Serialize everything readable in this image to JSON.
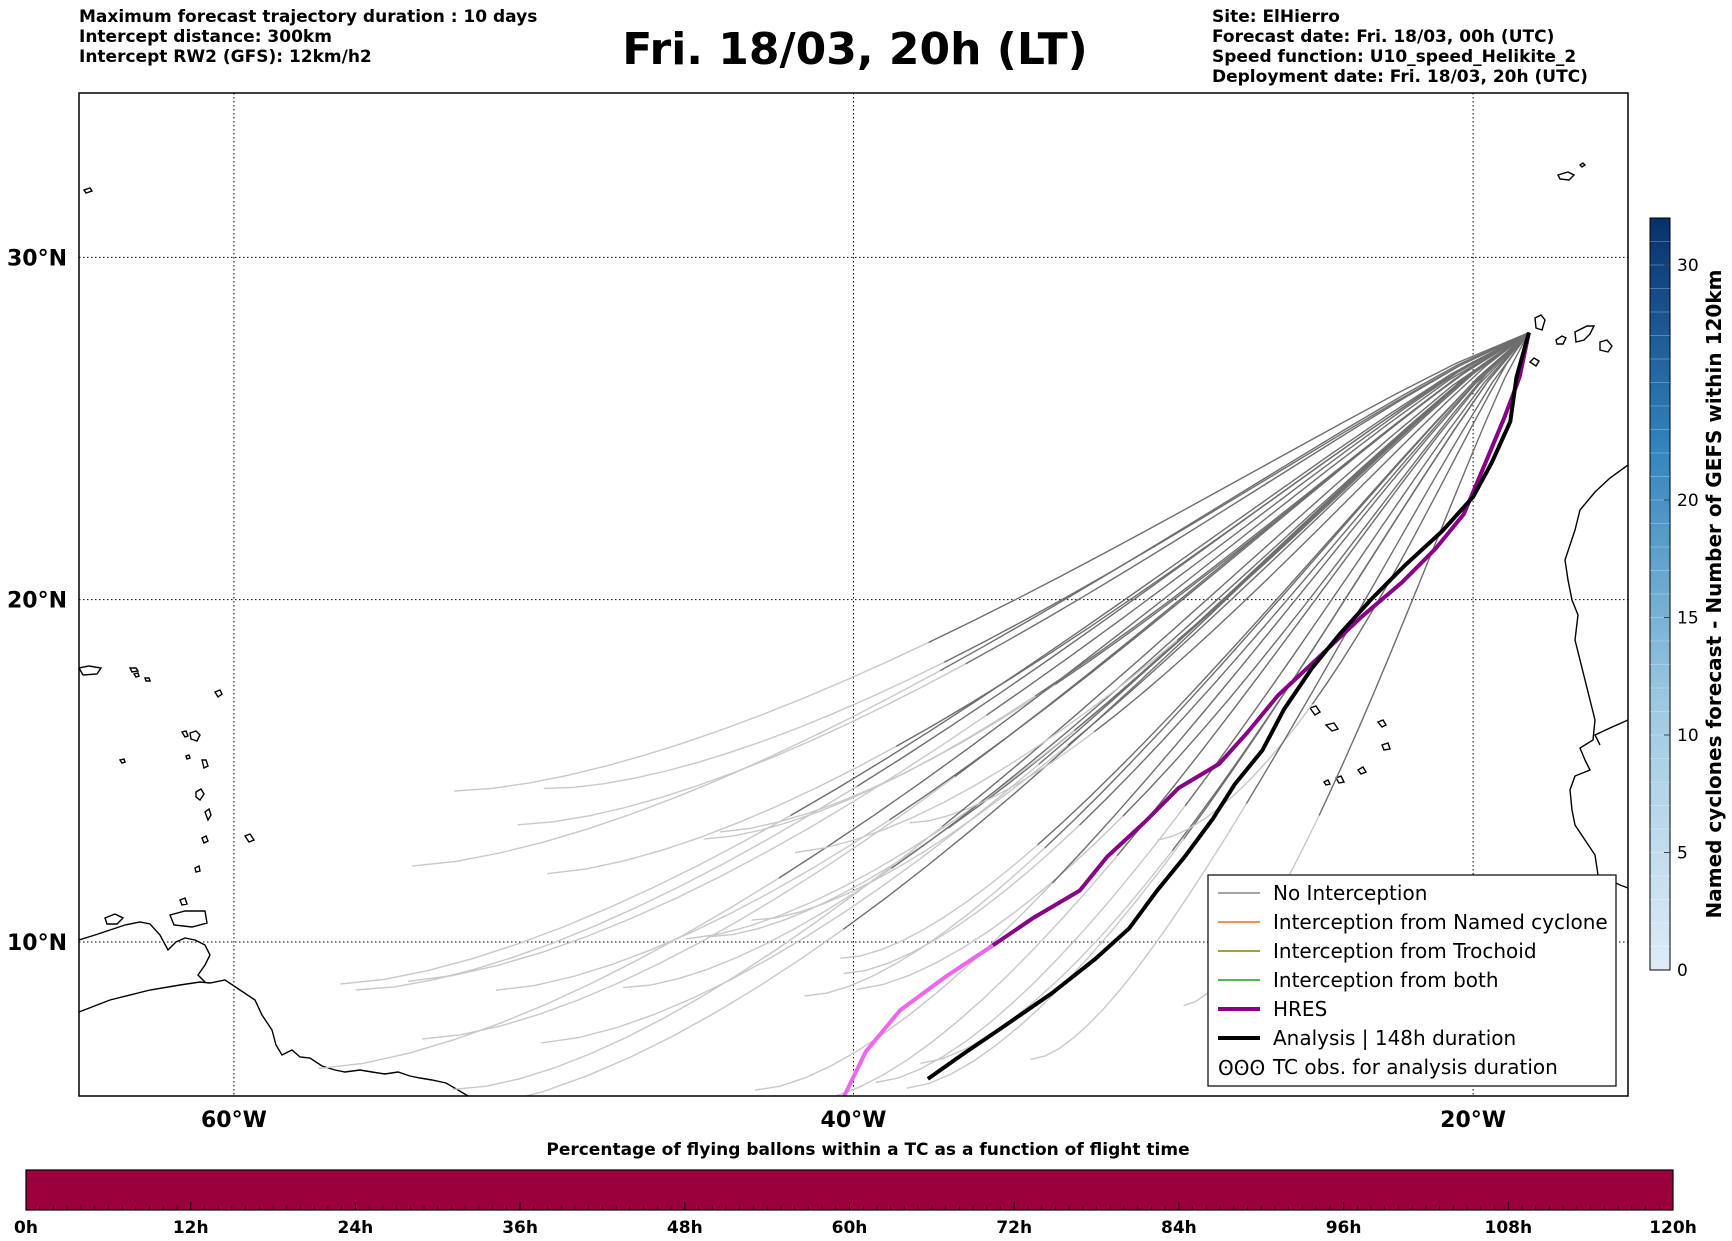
{
  "header": {
    "left": [
      "Maximum forecast trajectory duration : 10 days",
      "Intercept distance: 300km",
      "Intercept RW2 (GFS):  12km/h2"
    ],
    "title": "Fri. 18/03, 20h (LT)",
    "right": [
      "Site: ElHierro",
      "Forecast date: Fri. 18/03, 00h (UTC)",
      "Speed function: U10_speed_Helikite_2",
      "Deployment date: Fri. 18/03, 20h (UTC)"
    ]
  },
  "map": {
    "lon_range": [
      -65,
      -15
    ],
    "lat_range": [
      5.5,
      34.8
    ],
    "lat_ticks": [
      {
        "value": 30,
        "label": "30°N"
      },
      {
        "value": 20,
        "label": "20°N"
      },
      {
        "value": 10,
        "label": "10°N"
      }
    ],
    "lon_ticks": [
      {
        "value": -60,
        "label": "60°W"
      },
      {
        "value": -40,
        "label": "40°W"
      },
      {
        "value": -20,
        "label": "20°W"
      }
    ],
    "launch_point": {
      "lon": -18.2,
      "lat": 27.8
    },
    "colors": {
      "no_interception_recent": "#6e6e6e",
      "no_interception_late": "#c8c8c8",
      "named_cyclone": "#ff6a1a",
      "trochoid": "#808000",
      "both": "#1aa01a",
      "hres": "#880088",
      "hres_late": "#ee66ee",
      "analysis": "#000000"
    },
    "hres_track": [
      [
        -18.2,
        27.8
      ],
      [
        -18.5,
        26.5
      ],
      [
        -19,
        25.3
      ],
      [
        -19.6,
        24
      ],
      [
        -20.3,
        22.5
      ],
      [
        -21.2,
        21.5
      ],
      [
        -22.3,
        20.5
      ],
      [
        -23.6,
        19.5
      ],
      [
        -25,
        18.3
      ],
      [
        -26.3,
        17.2
      ],
      [
        -27.3,
        16.1
      ],
      [
        -28.2,
        15.2
      ],
      [
        -29.5,
        14.5
      ],
      [
        -30.6,
        13.5
      ],
      [
        -31.8,
        12.5
      ],
      [
        -32.7,
        11.5
      ],
      [
        -34.2,
        10.7
      ],
      [
        -35.5,
        9.9
      ],
      [
        -37,
        9
      ],
      [
        -38.5,
        8
      ],
      [
        -39.6,
        6.8
      ],
      [
        -40.3,
        5.5
      ]
    ],
    "analysis_track": [
      [
        -18.2,
        27.8
      ],
      [
        -18.6,
        26.5
      ],
      [
        -18.8,
        25.2
      ],
      [
        -19.4,
        24
      ],
      [
        -20,
        23
      ],
      [
        -21,
        22
      ],
      [
        -22.2,
        21
      ],
      [
        -23.3,
        20
      ],
      [
        -24.3,
        19
      ],
      [
        -25.2,
        18
      ],
      [
        -26.1,
        16.8
      ],
      [
        -26.8,
        15.6
      ],
      [
        -27.7,
        14.6
      ],
      [
        -28.4,
        13.6
      ],
      [
        -29.3,
        12.5
      ],
      [
        -30.2,
        11.5
      ],
      [
        -31.1,
        10.4
      ],
      [
        -32.2,
        9.5
      ],
      [
        -33.6,
        8.5
      ],
      [
        -35.2,
        7.5
      ],
      [
        -36.5,
        6.7
      ],
      [
        -37.6,
        6
      ]
    ]
  },
  "colorbar": {
    "title": "Named cyclones forecast - Number of GEFS within 120km",
    "ticks": [
      {
        "value": 0,
        "label": "0"
      },
      {
        "value": 5,
        "label": "5"
      },
      {
        "value": 10,
        "label": "10"
      },
      {
        "value": 15,
        "label": "15"
      },
      {
        "value": 20,
        "label": "20"
      },
      {
        "value": 30,
        "label": "30"
      }
    ],
    "range": [
      0,
      32
    ]
  },
  "legend": {
    "items": [
      {
        "label": "No Interception",
        "color": "#888888",
        "style": "thin"
      },
      {
        "label": "Interception from Named cyclone",
        "color": "#ff6a1a",
        "style": "thin"
      },
      {
        "label": "Interception from Trochoid",
        "color": "#808000",
        "style": "thin"
      },
      {
        "label": "Interception from both",
        "color": "#1aa01a",
        "style": "thin"
      },
      {
        "label": "HRES",
        "color": "#880088",
        "style": "thick"
      },
      {
        "label": "Analysis | 148h duration",
        "color": "#000000",
        "style": "thick"
      },
      {
        "label": "TC obs. for analysis duration",
        "color": "#000000",
        "style": "symbol",
        "symbol": "ʘʘʘ"
      }
    ]
  },
  "time_bar": {
    "title": "Percentage of flying ballons within a TC as a function of flight time",
    "fill_color": "#9b003c",
    "percent_values": [
      0,
      0,
      0,
      0,
      0,
      0,
      0,
      0,
      0,
      0,
      0
    ],
    "tick_labels": [
      "0h",
      "12h",
      "24h",
      "36h",
      "48h",
      "60h",
      "72h",
      "84h",
      "96h",
      "108h",
      "120h"
    ]
  }
}
